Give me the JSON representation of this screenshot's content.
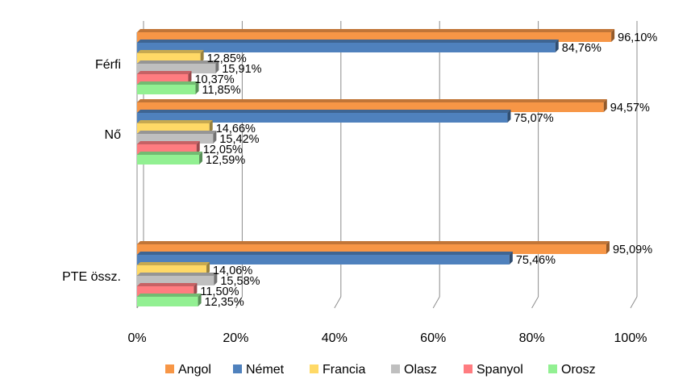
{
  "chart_data": {
    "type": "bar",
    "orientation": "horizontal",
    "three_d": true,
    "title": "",
    "xlabel": "",
    "ylabel": "",
    "categories": [
      "Férfi",
      "Nő",
      "PTE össz."
    ],
    "xlim": [
      0,
      100
    ],
    "ticks": [
      "0%",
      "20%",
      "40%",
      "60%",
      "80%",
      "100%"
    ],
    "grid": true,
    "legend_position": "bottom",
    "series": [
      {
        "name": "Angol",
        "color": "#F79646",
        "values": [
          96.1,
          94.57,
          95.09
        ],
        "labels": [
          "96,10%",
          "94,57%",
          "95,09%"
        ]
      },
      {
        "name": "Német",
        "color": "#4F81BD",
        "values": [
          84.76,
          75.07,
          75.46
        ],
        "labels": [
          "84,76%",
          "75,07%",
          "75,46%"
        ]
      },
      {
        "name": "Francia",
        "color": "#FFD966",
        "values": [
          12.85,
          14.66,
          14.06
        ],
        "labels": [
          "12,85%",
          "14,66%",
          "14,06%"
        ]
      },
      {
        "name": "Olasz",
        "color": "#BFBFBF",
        "values": [
          15.91,
          15.42,
          15.58
        ],
        "labels": [
          "15,91%",
          "15,42%",
          "15,58%"
        ]
      },
      {
        "name": "Spanyol",
        "color": "#FF7C80",
        "values": [
          10.37,
          12.05,
          11.5
        ],
        "labels": [
          "10,37%",
          "12,05%",
          "11,50%"
        ]
      },
      {
        "name": "Orosz",
        "color": "#92F092",
        "values": [
          11.85,
          12.59,
          12.35
        ],
        "labels": [
          "11,85%",
          "12,59%",
          "12,35%"
        ]
      }
    ]
  }
}
